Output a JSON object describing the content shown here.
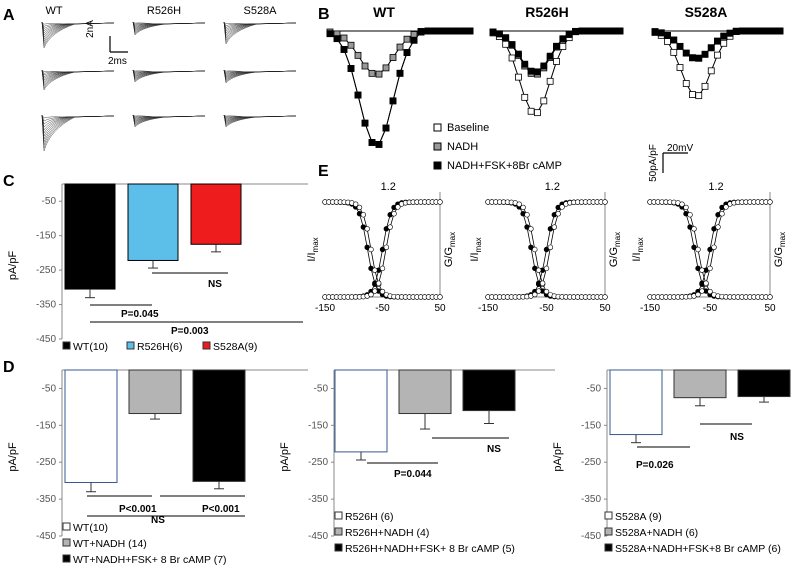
{
  "panels": {
    "A": {
      "letter": "A",
      "columns": [
        "WT",
        "R526H",
        "S528A"
      ],
      "scale": {
        "current": "2nA",
        "time": "2ms"
      }
    },
    "B": {
      "letter": "B",
      "titles": [
        "WT",
        "R526H",
        "S528A"
      ],
      "legend": [
        "Baseline",
        "NADH",
        "NADH+FSK+8Br cAMP"
      ],
      "scale": {
        "current": "50pA/pF",
        "voltage": "20mV"
      }
    },
    "E": {
      "letter": "E",
      "ylabel_left": "I/I",
      "ylabel_left_sub": "max",
      "ylabel_right": "G/G",
      "ylabel_right_sub": "max",
      "ymax_label": "1.2"
    }
  },
  "chart_data": [
    {
      "id": "C",
      "type": "bar",
      "letter": "C",
      "ylabel": "pA/pF",
      "ylim": [
        -450,
        0
      ],
      "yticks": [
        -50,
        -150,
        -250,
        -350,
        -450
      ],
      "categories": [
        "WT(10)",
        "R526H(6)",
        "S528A(9)"
      ],
      "values": [
        -305,
        -222,
        -175
      ],
      "errors": [
        25,
        22,
        22
      ],
      "colors": [
        "#000000",
        "#5bbfea",
        "#ee1c1c"
      ],
      "legend": [
        "WT(10)",
        "R526H(6)",
        "S528A(9)"
      ],
      "annotations": [
        "P=0.045",
        "P=0.003",
        "NS"
      ]
    },
    {
      "id": "D1",
      "type": "bar",
      "letter": "D",
      "ylabel": "pA/pF",
      "ylim": [
        -450,
        0
      ],
      "yticks": [
        -50,
        -150,
        -250,
        -350,
        -450
      ],
      "categories": [
        "WT(10)",
        "WT+NADH (14)",
        "WT+NADH+FSK+ 8 Br cAMP (7)"
      ],
      "values": [
        -305,
        -118,
        -302
      ],
      "errors": [
        25,
        15,
        20
      ],
      "colors": [
        "#ffffff",
        "#b4b4b4",
        "#000000"
      ],
      "legend": [
        "WT(10)",
        "WT+NADH (14)",
        "WT+NADH+FSK+ 8 Br cAMP (7)"
      ],
      "annotations": [
        "P<0.001",
        "P<0.001",
        "NS"
      ]
    },
    {
      "id": "D2",
      "type": "bar",
      "ylabel": "pA/pF",
      "ylim": [
        -450,
        0
      ],
      "yticks": [
        -50,
        -150,
        -250,
        -350,
        -450
      ],
      "categories": [
        "R526H (6)",
        "R526H+NADH (4)",
        "R526H+NADH+FSK+ 8 Br cAMP (5)"
      ],
      "values": [
        -222,
        -118,
        -110
      ],
      "errors": [
        22,
        42,
        35
      ],
      "colors": [
        "#ffffff",
        "#b4b4b4",
        "#000000"
      ],
      "legend": [
        "R526H (6)",
        "R526H+NADH (4)",
        "R526H+NADH+FSK+ 8 Br cAMP (5)"
      ],
      "annotations": [
        "P=0.044",
        "NS"
      ]
    },
    {
      "id": "D3",
      "type": "bar",
      "ylabel": "pA/pF",
      "ylim": [
        -450,
        0
      ],
      "yticks": [
        -50,
        -150,
        -250,
        -350,
        -450
      ],
      "categories": [
        "S528A (9)",
        "S528A+NADH (6)",
        "S528A+NADH+FSK+8 Br cAMP (6)"
      ],
      "values": [
        -175,
        -75,
        -72
      ],
      "errors": [
        22,
        22,
        15
      ],
      "colors": [
        "#ffffff",
        "#b4b4b4",
        "#000000"
      ],
      "legend": [
        "S528A (9)",
        "S528A+NADH (6)",
        "S528A+NADH+FSK+8 Br cAMP (6)"
      ],
      "annotations": [
        "P=0.026",
        "NS"
      ]
    },
    {
      "id": "B",
      "type": "line",
      "series_names": [
        "Baseline",
        "NADH",
        "NADH+FSK+8Br cAMP"
      ],
      "peaks": {
        "WT": [
          -1.0,
          -0.38,
          -1.0
        ],
        "R526H": [
          -0.72,
          -0.38,
          -0.36
        ],
        "S528A": [
          -0.57,
          -0.24,
          -0.24
        ]
      }
    },
    {
      "id": "E",
      "type": "line",
      "xticks": [
        -150,
        -50,
        50
      ],
      "ymax": 1.2
    }
  ]
}
